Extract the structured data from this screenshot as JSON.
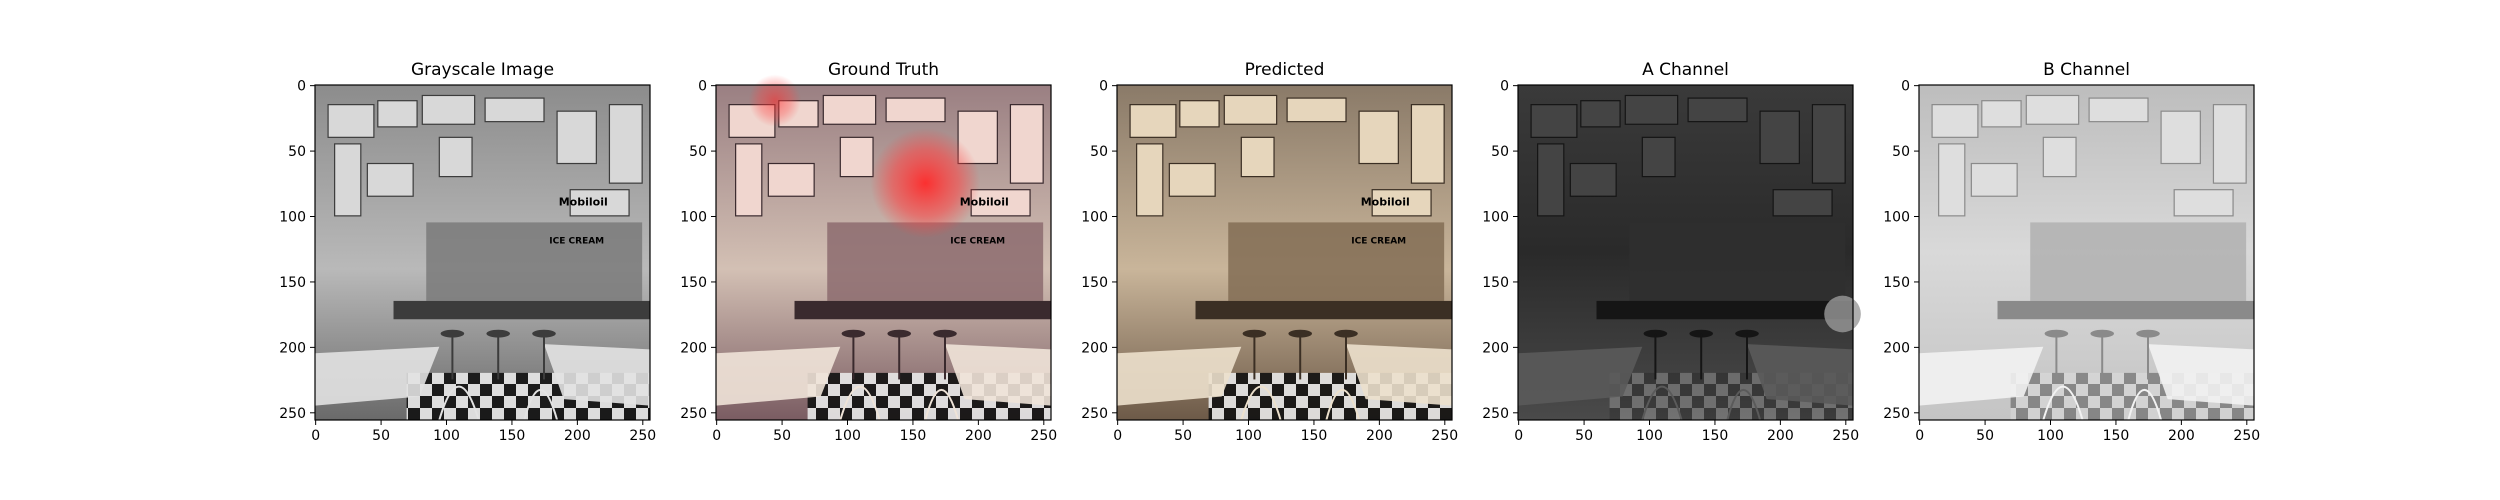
{
  "chart_data": [
    {
      "type": "image",
      "title": "Grayscale Image",
      "xlabel": "",
      "ylabel": "",
      "image_size": [
        256,
        256
      ],
      "xlim": [
        0,
        256
      ],
      "ylim": [
        256,
        0
      ],
      "xticks": [
        0,
        50,
        100,
        150,
        200,
        250
      ],
      "yticks": [
        0,
        50,
        100,
        150,
        200,
        250
      ],
      "grid": false,
      "colormap": "gray",
      "image_content": "diner interior with counter, stools, checkered floor and wall signs",
      "sign_text": [
        "Mobiloil",
        "ICE CREAM"
      ]
    },
    {
      "type": "image",
      "title": "Ground Truth",
      "xlabel": "",
      "ylabel": "",
      "image_size": [
        256,
        256
      ],
      "xlim": [
        0,
        256
      ],
      "ylim": [
        256,
        0
      ],
      "xticks": [
        0,
        50,
        100,
        150,
        200,
        250
      ],
      "yticks": [
        0,
        50,
        100,
        150,
        200,
        250
      ],
      "grid": false,
      "colormap": "rgb",
      "image_content": "diner interior in color with red neon sign",
      "sign_text": [
        "Mobiloil",
        "ICE CREAM"
      ]
    },
    {
      "type": "image",
      "title": "Predicted",
      "xlabel": "",
      "ylabel": "",
      "image_size": [
        256,
        256
      ],
      "xlim": [
        0,
        256
      ],
      "ylim": [
        256,
        0
      ],
      "xticks": [
        0,
        50,
        100,
        150,
        200,
        250
      ],
      "yticks": [
        0,
        50,
        100,
        150,
        200,
        250
      ],
      "grid": false,
      "colormap": "rgb",
      "image_content": "diner interior with sepia-toned colorization",
      "sign_text": [
        "Mobiloil",
        "ICE CREAM"
      ]
    },
    {
      "type": "image",
      "title": "A Channel",
      "xlabel": "",
      "ylabel": "",
      "image_size": [
        256,
        256
      ],
      "xlim": [
        0,
        256
      ],
      "ylim": [
        256,
        0
      ],
      "xticks": [
        0,
        50,
        100,
        150,
        200,
        250
      ],
      "yticks": [
        0,
        50,
        100,
        150,
        200,
        250
      ],
      "grid": false,
      "colormap": "gray",
      "image_content": "dark, low-contrast A chroma channel",
      "sign_text": []
    },
    {
      "type": "image",
      "title": "B Channel",
      "xlabel": "",
      "ylabel": "",
      "image_size": [
        256,
        256
      ],
      "xlim": [
        0,
        256
      ],
      "ylim": [
        256,
        0
      ],
      "xticks": [
        0,
        50,
        100,
        150,
        200,
        250
      ],
      "yticks": [
        0,
        50,
        100,
        150,
        200,
        250
      ],
      "grid": false,
      "colormap": "gray",
      "image_content": "bright, blurry B chroma channel",
      "sign_text": []
    }
  ]
}
